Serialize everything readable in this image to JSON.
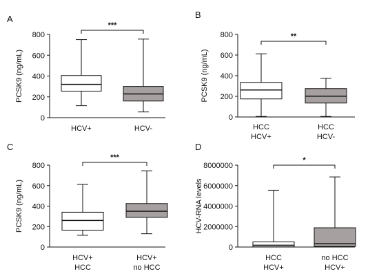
{
  "colors": {
    "box_white": "#ffffff",
    "box_gray": "#a7a0a0",
    "ink": "#111111"
  },
  "chart_data": [
    {
      "panel": "A",
      "type": "box",
      "ylabel": "PCSK9 (ng/mL)",
      "ylim": [
        0,
        800
      ],
      "yticks": [
        0,
        200,
        400,
        600,
        800
      ],
      "categories": [
        [
          "HCV+"
        ],
        [
          "HCV-"
        ]
      ],
      "boxes": [
        {
          "min": 115,
          "q1": 255,
          "median": 320,
          "q3": 405,
          "max": 750,
          "fill": "white"
        },
        {
          "min": 55,
          "q1": 160,
          "median": 228,
          "q3": 300,
          "max": 755,
          "fill": "gray"
        }
      ],
      "significance": "***"
    },
    {
      "panel": "B",
      "type": "box",
      "ylabel": "PCSK9 (ng/mL)",
      "ylim": [
        0,
        800
      ],
      "yticks": [
        0,
        200,
        400,
        600,
        800
      ],
      "categories": [
        [
          "HCC",
          "HCV+"
        ],
        [
          "HCC",
          "HCV-"
        ]
      ],
      "boxes": [
        {
          "min": 5,
          "q1": 175,
          "median": 262,
          "q3": 335,
          "max": 612,
          "fill": "white"
        },
        {
          "min": 5,
          "q1": 135,
          "median": 202,
          "q3": 275,
          "max": 375,
          "fill": "gray"
        }
      ],
      "significance": "**"
    },
    {
      "panel": "C",
      "type": "box",
      "ylabel": "PCSK9 (ng/mL)",
      "ylim": [
        0,
        800
      ],
      "yticks": [
        0,
        200,
        400,
        600,
        800
      ],
      "categories": [
        [
          "HCV+",
          "HCC"
        ],
        [
          "HCV+",
          "no HCC"
        ]
      ],
      "boxes": [
        {
          "min": 115,
          "q1": 165,
          "median": 260,
          "q3": 340,
          "max": 612,
          "fill": "white"
        },
        {
          "min": 130,
          "q1": 290,
          "median": 350,
          "q3": 425,
          "max": 745,
          "fill": "gray"
        }
      ],
      "significance": "***"
    },
    {
      "panel": "D",
      "type": "box",
      "ylabel": "HCV-RNA levels",
      "ylim": [
        0,
        8000000
      ],
      "yticks": [
        0,
        2000000,
        4000000,
        6000000,
        8000000
      ],
      "categories": [
        [
          "HCC",
          "HCV+"
        ],
        [
          "no HCC",
          "HCV+"
        ]
      ],
      "boxes": [
        {
          "min": 0,
          "q1": 20000,
          "median": 180000,
          "q3": 500000,
          "max": 5550000,
          "fill": "white"
        },
        {
          "min": 0,
          "q1": 60000,
          "median": 320000,
          "q3": 1880000,
          "max": 6850000,
          "fill": "gray"
        }
      ],
      "significance": "*"
    }
  ]
}
